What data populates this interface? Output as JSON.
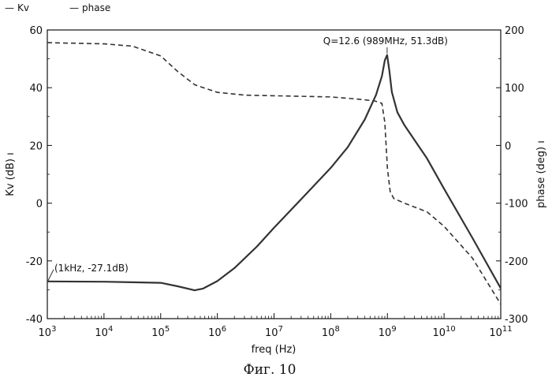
{
  "chart_data": {
    "type": "line",
    "legend": {
      "placement": "top-left",
      "entries": [
        {
          "marker": "—",
          "label": "Kv"
        },
        {
          "marker": "—",
          "label": "phase"
        }
      ]
    },
    "xlabel": "freq (Hz)",
    "ylabel_left": "Kv (dB) ı",
    "ylabel_right": "phase (deg) ı",
    "x_scale": "log",
    "xlim": [
      1000,
      100000000000
    ],
    "ylim_left": [
      -40,
      60
    ],
    "ylim_right": [
      -300,
      200
    ],
    "grid": false,
    "x_ticks": [
      {
        "value": 1000,
        "base": "10",
        "exp": "3"
      },
      {
        "value": 10000,
        "base": "10",
        "exp": "4"
      },
      {
        "value": 100000,
        "base": "10",
        "exp": "5"
      },
      {
        "value": 1000000,
        "base": "10",
        "exp": "6"
      },
      {
        "value": 10000000,
        "base": "10",
        "exp": "7"
      },
      {
        "value": 100000000,
        "base": "10",
        "exp": "8"
      },
      {
        "value": 1000000000,
        "base": "10",
        "exp": "9"
      },
      {
        "value": 10000000000,
        "base": "10",
        "exp": "10"
      },
      {
        "value": 100000000000,
        "base": "10",
        "exp": "11"
      }
    ],
    "y_left_ticks": [
      {
        "value": 60,
        "label": "60"
      },
      {
        "value": 40,
        "label": "40"
      },
      {
        "value": 20,
        "label": "20"
      },
      {
        "value": 0,
        "label": "0"
      },
      {
        "value": -20,
        "label": "-20"
      },
      {
        "value": -40,
        "label": "-40"
      }
    ],
    "y_right_ticks": [
      {
        "value": 200,
        "label": "200"
      },
      {
        "value": 100,
        "label": "100"
      },
      {
        "value": 0,
        "label": "0"
      },
      {
        "value": -100,
        "label": "-100"
      },
      {
        "value": -200,
        "label": "-200"
      },
      {
        "value": -300,
        "label": "-300"
      }
    ],
    "series": [
      {
        "name": "Kv",
        "axis": "left",
        "style": "solid",
        "points": [
          [
            1000,
            -27.1
          ],
          [
            10000,
            -27.2
          ],
          [
            31600,
            -27.4
          ],
          [
            100000,
            -27.6
          ],
          [
            200000,
            -28.8
          ],
          [
            398000,
            -30.2
          ],
          [
            560000,
            -29.6
          ],
          [
            1000000,
            -27.0
          ],
          [
            2000000,
            -22.5
          ],
          [
            5000000,
            -15.0
          ],
          [
            10000000,
            -8.5
          ],
          [
            31600000,
            1.8
          ],
          [
            100000000,
            12.2
          ],
          [
            200000000,
            19.4
          ],
          [
            400000000,
            29.0
          ],
          [
            630000000,
            37.5
          ],
          [
            800000000,
            44.0
          ],
          [
            900000000,
            49.5
          ],
          [
            989000000,
            51.3
          ],
          [
            1080000000,
            46.0
          ],
          [
            1200000000,
            38.5
          ],
          [
            1500000000,
            31.5
          ],
          [
            2000000000,
            27.0
          ],
          [
            5000000000,
            15.5
          ],
          [
            10000000000,
            5.0
          ],
          [
            31600000000,
            -12.0
          ],
          [
            100000000000,
            -29.5
          ]
        ]
      },
      {
        "name": "phase",
        "axis": "right",
        "style": "dashed",
        "points": [
          [
            1000,
            178
          ],
          [
            10000,
            176
          ],
          [
            31600,
            172
          ],
          [
            100000,
            155
          ],
          [
            200000,
            128
          ],
          [
            400000,
            105
          ],
          [
            1000000,
            92
          ],
          [
            3160000,
            87
          ],
          [
            10000000,
            86
          ],
          [
            100000000,
            84
          ],
          [
            316000000,
            80
          ],
          [
            600000000,
            77
          ],
          [
            800000000,
            73
          ],
          [
            900000000,
            40
          ],
          [
            1000000000,
            -40
          ],
          [
            1120000000,
            -80
          ],
          [
            1300000000,
            -92
          ],
          [
            2000000000,
            -100
          ],
          [
            5000000000,
            -115
          ],
          [
            10000000000,
            -140
          ],
          [
            31600000000,
            -195
          ],
          [
            100000000000,
            -275
          ]
        ]
      }
    ],
    "annotations": [
      {
        "text": "Q=12.6 (989MHz, 51.3dB)",
        "x": 989000000,
        "y": 51.3,
        "axis": "left"
      },
      {
        "text": "(1kHz, -27.1dB)",
        "x": 1000,
        "y": -27.1,
        "axis": "left"
      }
    ],
    "caption": "Фиг. 10"
  }
}
